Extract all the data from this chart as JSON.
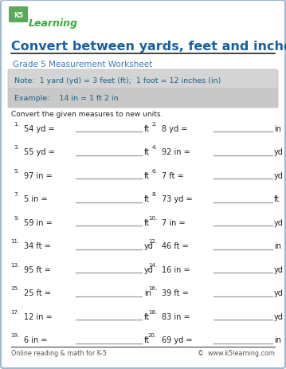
{
  "title": "Convert between yards, feet and inches",
  "subtitle": "Grade 5 Measurement Worksheet",
  "note": "Note:  1 yard (yd) = 3 feet (ft);  1 foot = 12 inches (in)",
  "example": "Example:    14 in = 1 ft 2 in",
  "instruction": "Convert the given measures to new units.",
  "problems": [
    {
      "num": "1.",
      "q": "54 yd =",
      "unit": "ft"
    },
    {
      "num": "2.",
      "q": "8 yd =",
      "unit": "in"
    },
    {
      "num": "3.",
      "q": "55 yd =",
      "unit": "ft"
    },
    {
      "num": "4.",
      "q": "92 in =",
      "unit": "yd"
    },
    {
      "num": "5.",
      "q": "97 in =",
      "unit": "ft"
    },
    {
      "num": "6.",
      "q": "7 ft =",
      "unit": "yd"
    },
    {
      "num": "7.",
      "q": "5 in =",
      "unit": "ft"
    },
    {
      "num": "8.",
      "q": "73 yd =",
      "unit": "ft"
    },
    {
      "num": "9.",
      "q": "59 in =",
      "unit": "ft"
    },
    {
      "num": "10.",
      "q": "7 in =",
      "unit": "yd"
    },
    {
      "num": "11.",
      "q": "34 ft =",
      "unit": "yd"
    },
    {
      "num": "12.",
      "q": "46 ft =",
      "unit": "in"
    },
    {
      "num": "13.",
      "q": "95 ft =",
      "unit": "yd"
    },
    {
      "num": "14.",
      "q": "16 in =",
      "unit": "yd"
    },
    {
      "num": "15.",
      "q": "25 ft =",
      "unit": "in"
    },
    {
      "num": "16.",
      "q": "39 ft =",
      "unit": "yd"
    },
    {
      "num": "17.",
      "q": "12 in =",
      "unit": "ft"
    },
    {
      "num": "18.",
      "q": "83 in =",
      "unit": "yd"
    },
    {
      "num": "19.",
      "q": "6 in =",
      "unit": "ft"
    },
    {
      "num": "20.",
      "q": "69 yd =",
      "unit": "in"
    }
  ],
  "footer_left": "Online reading & math for K-5",
  "footer_right": "©  www.k5learning.com",
  "bg_color": "#ffffff",
  "border_color": "#a0b8d0",
  "title_color": "#1a5fa0",
  "subtitle_color": "#3a7ab8",
  "note_bg": "#d4d4d4",
  "note_color": "#1a6080",
  "example_bg": "#c8c8c8",
  "example_color": "#1a6080",
  "text_color": "#222222",
  "line_color": "#999999",
  "footer_color": "#555555"
}
